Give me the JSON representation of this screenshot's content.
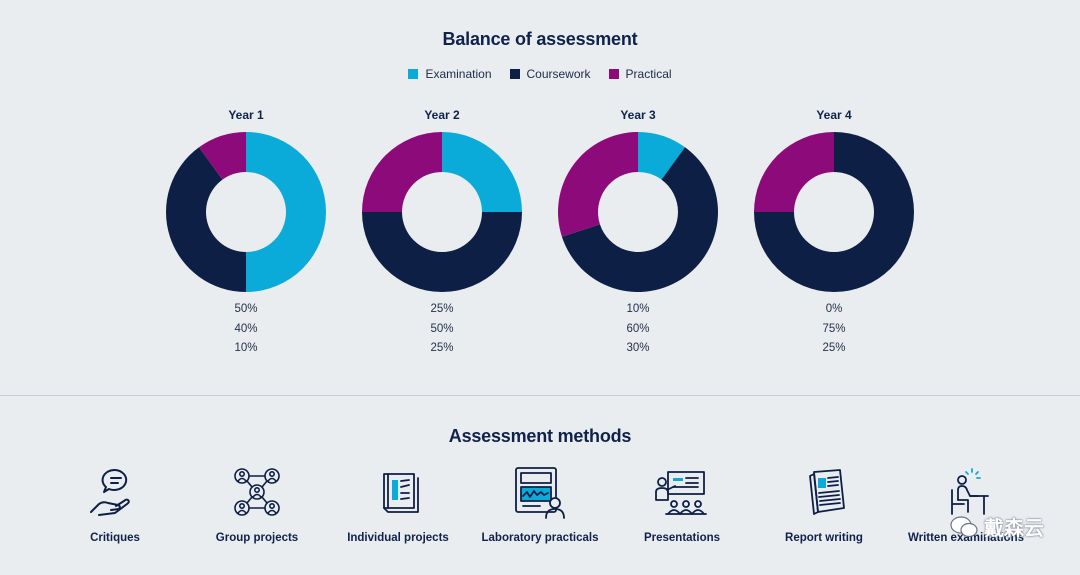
{
  "title": "Balance of assessment",
  "legend": [
    {
      "label": "Examination",
      "color": "#0aabd8"
    },
    {
      "label": "Coursework",
      "color": "#0e1f45"
    },
    {
      "label": "Practical",
      "color": "#8c0a7a"
    }
  ],
  "chart_data": {
    "type": "pie",
    "style": "donut",
    "series_names": [
      "Examination",
      "Coursework",
      "Practical"
    ],
    "colors": [
      "#0aabd8",
      "#0e1f45",
      "#8c0a7a"
    ],
    "charts": [
      {
        "title": "Year 1",
        "values": [
          50,
          40,
          10
        ],
        "labels": [
          "50%",
          "40%",
          "10%"
        ]
      },
      {
        "title": "Year 2",
        "values": [
          25,
          50,
          25
        ],
        "labels": [
          "25%",
          "50%",
          "25%"
        ]
      },
      {
        "title": "Year 3",
        "values": [
          10,
          60,
          30
        ],
        "labels": [
          "10%",
          "60%",
          "30%"
        ]
      },
      {
        "title": "Year 4",
        "values": [
          0,
          75,
          25
        ],
        "labels": [
          "0%",
          "75%",
          "25%"
        ]
      }
    ]
  },
  "methods": {
    "title": "Assessment methods",
    "items": [
      {
        "label": "Critiques",
        "icon": "speech-hand-icon"
      },
      {
        "label": "Group projects",
        "icon": "group-network-icon"
      },
      {
        "label": "Individual projects",
        "icon": "book-icon"
      },
      {
        "label": "Laboratory practicals",
        "icon": "lab-machine-icon"
      },
      {
        "label": "Presentations",
        "icon": "presentation-icon"
      },
      {
        "label": "Report writing",
        "icon": "report-icon"
      },
      {
        "label": "Written examinations",
        "icon": "exam-desk-icon"
      }
    ]
  },
  "watermark": "戴森云"
}
